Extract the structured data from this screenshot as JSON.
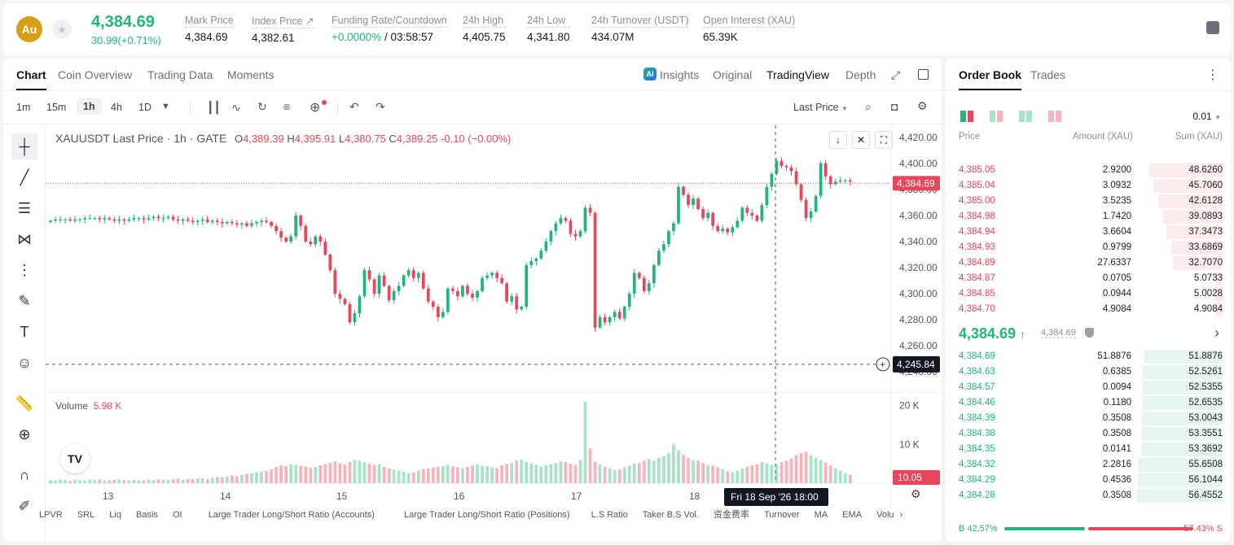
{
  "header": {
    "coin_symbol": "Au",
    "last_price": "4,384.69",
    "change": "30.99(+0.71%)",
    "stats": [
      {
        "label": "Mark Price",
        "value": "4,384.69"
      },
      {
        "label": "Index Price ↗",
        "value": "4,382.61"
      },
      {
        "label": "Funding Rate/Countdown",
        "value_green": "+0.0000%",
        "value": " / 03:58:57"
      },
      {
        "label": "24h High",
        "value": "4,405.75"
      },
      {
        "label": "24h Low",
        "value": "4,341.80"
      },
      {
        "label": "24h Turnover (USDT)",
        "value": "434.07M"
      },
      {
        "label": "Open Interest (XAU)",
        "value": "65.39K"
      }
    ]
  },
  "chart_tabs": [
    "Chart",
    "Coin Overview",
    "Trading Data",
    "Moments"
  ],
  "view_tabs": {
    "insights": "Insights",
    "original": "Original",
    "tradingview": "TradingView",
    "depth": "Depth"
  },
  "timeframes": [
    "1m",
    "15m",
    "1h",
    "4h",
    "1D"
  ],
  "price_source": "Last Price",
  "legend": {
    "title": "XAUUSDT Last Price · 1h · GATE",
    "o_label": "O",
    "o": "4,389.39",
    "h_label": "H",
    "h": "4,395.91",
    "l_label": "L",
    "l": "4,380.75",
    "c_label": "C",
    "c": "4,389.25",
    "chg": "-0.10 (−0.00%)"
  },
  "volume": {
    "label": "Volume",
    "value": "5.98 K"
  },
  "price_tag": "4,384.69",
  "crosshair_price": "4,245.84",
  "crosshair_time": "Fri 18 Sep '26   18:00",
  "volume_tag": "10.05",
  "bottom_indicators": [
    "LPVR",
    "SRL",
    "Liq",
    "Basis",
    "OI",
    "Large Trader Long/Short Ratio (Accounts)",
    "Large Trader Long/Short Ratio (Positions)",
    "L.S Ratio",
    "Taker B.S Vol.",
    "资金费率",
    "Turnover",
    "MA",
    "EMA",
    "Volu"
  ],
  "chart_data": {
    "type": "candlestick",
    "y_ticks": [
      "4,420.00",
      "4,400.00",
      "4,380.00",
      "4,360.00",
      "4,340.00",
      "4,320.00",
      "4,300.00",
      "4,280.00",
      "4,260.00",
      "4,240.00"
    ],
    "ylim": [
      4237,
      4423
    ],
    "volume_ticks": [
      "20 K",
      "10 K"
    ],
    "x_ticks": [
      "13",
      "14",
      "15",
      "16",
      "17",
      "18"
    ],
    "closes": [
      4356,
      4357,
      4357,
      4357,
      4356,
      4357,
      4357,
      4358,
      4358,
      4358,
      4357,
      4358,
      4357,
      4356,
      4357,
      4356,
      4357,
      4358,
      4358,
      4357,
      4358,
      4359,
      4358,
      4358,
      4359,
      4357,
      4356,
      4357,
      4356,
      4355,
      4356,
      4357,
      4355,
      4356,
      4355,
      4354,
      4355,
      4354,
      4353,
      4354,
      4352,
      4354,
      4355,
      4356,
      4355,
      4352,
      4348,
      4343,
      4340,
      4344,
      4360,
      4352,
      4340,
      4338,
      4344,
      4340,
      4330,
      4318,
      4300,
      4296,
      4292,
      4278,
      4285,
      4298,
      4318,
      4311,
      4300,
      4314,
      4306,
      4295,
      4302,
      4306,
      4314,
      4318,
      4312,
      4316,
      4304,
      4294,
      4290,
      4282,
      4286,
      4304,
      4302,
      4298,
      4306,
      4300,
      4297,
      4302,
      4312,
      4314,
      4316,
      4312,
      4308,
      4294,
      4298,
      4288,
      4290,
      4322,
      4325,
      4327,
      4333,
      4340,
      4348,
      4354,
      4358,
      4356,
      4346,
      4344,
      4348,
      4366,
      4362,
      4274,
      4282,
      4278,
      4282,
      4286,
      4281,
      4290,
      4300,
      4316,
      4312,
      4302,
      4308,
      4322,
      4333,
      4338,
      4348,
      4354,
      4382,
      4376,
      4368,
      4373,
      4365,
      4358,
      4362,
      4352,
      4348,
      4350,
      4347,
      4351,
      4356,
      4366,
      4362,
      4360,
      4356,
      4368,
      4382,
      4392,
      4402,
      4398,
      4397,
      4394,
      4384,
      4372,
      4358,
      4363,
      4375,
      4400,
      4390,
      4384,
      4386,
      4387,
      4387,
      4386
    ],
    "volumes_k": [
      0.8,
      0.7,
      0.9,
      0.8,
      0.6,
      0.9,
      0.8,
      0.7,
      1,
      0.8,
      0.9,
      0.7,
      0.8,
      0.9,
      1,
      0.8,
      0.7,
      0.9,
      0.8,
      0.7,
      0.9,
      0.8,
      1,
      0.9,
      0.8,
      1,
      1.2,
      0.9,
      1,
      1.1,
      1.2,
      1.3,
      1,
      1.4,
      1.6,
      1.5,
      1.7,
      2,
      1.8,
      2.2,
      2.4,
      2.6,
      2.8,
      3,
      3.2,
      3.6,
      4.2,
      4.6,
      4.4,
      4.8,
      4.7,
      4.5,
      4.3,
      4,
      4.2,
      4.6,
      4.9,
      5.2,
      5.6,
      5.1,
      4.8,
      5.5,
      6,
      5.8,
      5.4,
      5,
      4.7,
      4.9,
      4.2,
      3.8,
      3.5,
      3.2,
      3,
      2.6,
      2.8,
      3.2,
      3.6,
      3.8,
      4,
      4.2,
      4.4,
      4.7,
      4.3,
      4.1,
      3.9,
      4.2,
      4.6,
      4.8,
      4.5,
      4.4,
      4.1,
      3.9,
      4.6,
      5,
      5.2,
      5.8,
      6.1,
      5.5,
      5.1,
      4.8,
      4.3,
      4.6,
      4.9,
      5.2,
      5.6,
      5.4,
      5,
      4.7,
      6,
      21,
      9,
      5.5,
      4.8,
      4.2,
      3.8,
      3.4,
      3.6,
      4.1,
      4.5,
      5,
      5.2,
      5.8,
      6.2,
      5.8,
      6.5,
      7,
      7.8,
      10,
      8.5,
      7.3,
      6.5,
      6,
      5.8,
      5.2,
      4.6,
      4.5,
      4.1,
      3.6,
      3.1,
      2.8,
      3.2,
      3.8,
      4.2,
      4.6,
      4.9,
      5.5,
      5.1,
      4.7,
      4.9,
      5.4,
      5.8,
      6.4,
      7.2,
      7.8,
      8.1,
      7.2,
      6.5,
      5.9,
      5.3,
      4.6,
      3.9,
      3.2,
      2.6,
      2.2,
      1.8
    ]
  },
  "order_book": {
    "tabs": [
      "Order Book",
      "Trades"
    ],
    "precision": "0.01",
    "columns": {
      "price": "Price",
      "amount": "Amount (XAU)",
      "sum": "Sum (XAU)"
    },
    "asks": [
      {
        "price": "4,385.05",
        "amount": "2.9200",
        "sum": "48.6260",
        "depth": 0.862
      },
      {
        "price": "4,385.04",
        "amount": "3.0932",
        "sum": "45.7060",
        "depth": 0.81
      },
      {
        "price": "4,385.00",
        "amount": "3.5235",
        "sum": "42.6128",
        "depth": 0.755
      },
      {
        "price": "4,384.98",
        "amount": "1.7420",
        "sum": "39.0893",
        "depth": 0.693
      },
      {
        "price": "4,384.94",
        "amount": "3.6604",
        "sum": "37.3473",
        "depth": 0.662
      },
      {
        "price": "4,384.93",
        "amount": "0.9799",
        "sum": "33.6869",
        "depth": 0.597
      },
      {
        "price": "4,384.89",
        "amount": "27.6337",
        "sum": "32.7070",
        "depth": 0.58
      },
      {
        "price": "4,384.87",
        "amount": "0.0705",
        "sum": "5.0733",
        "depth": 0.09
      },
      {
        "price": "4,384.85",
        "amount": "0.0944",
        "sum": "5.0028",
        "depth": 0.089
      },
      {
        "price": "4,384.70",
        "amount": "4.9084",
        "sum": "4.9084",
        "depth": 0.087
      }
    ],
    "mid_price": "4,384.69",
    "mid_mark": "4,384.69",
    "bids": [
      {
        "price": "4,384.69",
        "amount": "51.8876",
        "sum": "51.8876",
        "depth": 0.919
      },
      {
        "price": "4,384.63",
        "amount": "0.6385",
        "sum": "52.5261",
        "depth": 0.931
      },
      {
        "price": "4,384.57",
        "amount": "0.0094",
        "sum": "52.5355",
        "depth": 0.931
      },
      {
        "price": "4,384.46",
        "amount": "0.1180",
        "sum": "52.6535",
        "depth": 0.933
      },
      {
        "price": "4,384.39",
        "amount": "0.3508",
        "sum": "53.0043",
        "depth": 0.939
      },
      {
        "price": "4,384.38",
        "amount": "0.3508",
        "sum": "53.3551",
        "depth": 0.945
      },
      {
        "price": "4,384.35",
        "amount": "0.0141",
        "sum": "53.3692",
        "depth": 0.946
      },
      {
        "price": "4,384.32",
        "amount": "2.2816",
        "sum": "55.6508",
        "depth": 0.986
      },
      {
        "price": "4,384.29",
        "amount": "0.4536",
        "sum": "56.1044",
        "depth": 0.994
      },
      {
        "price": "4,384.28",
        "amount": "0.3508",
        "sum": "56.4552",
        "depth": 1.0
      }
    ],
    "buy_ratio": "B 42.57%",
    "sell_ratio": "57.43% S",
    "buy_fraction": 0.4257
  },
  "colors": {
    "up": "#21b57c",
    "down": "#e8475b",
    "up_bg": "#e6f6ee",
    "down_bg": "#fdeced"
  }
}
